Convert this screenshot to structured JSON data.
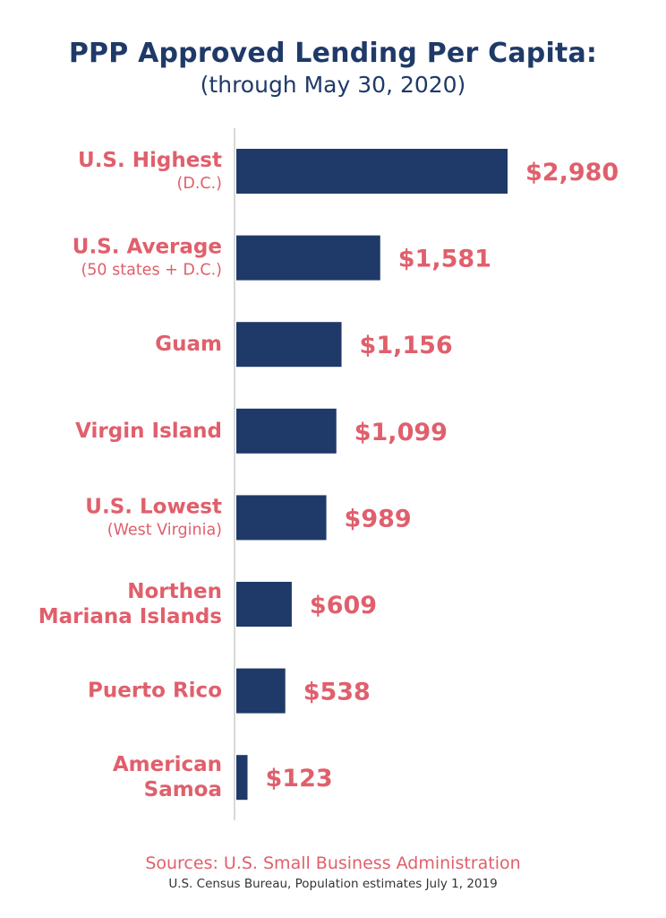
{
  "title": "PPP Approved Lending Per Capita:",
  "subtitle": "(through May 30, 2020)",
  "sources": {
    "line1": "Sources: U.S. Small Business Administration",
    "line2": "U.S. Census Bureau, Population estimates July 1, 2019"
  },
  "colors": {
    "bar": "#1f3a68",
    "label": "#e05f6c",
    "title": "#1f3a68",
    "axis": "#d8d8d8"
  },
  "chart_data": {
    "type": "bar",
    "orientation": "horizontal",
    "title": "PPP Approved Lending Per Capita:",
    "subtitle": "(through May 30, 2020)",
    "categories": [
      {
        "main": [
          "U.S. Highest"
        ],
        "sub": "(D.C.)"
      },
      {
        "main": [
          "U.S. Average"
        ],
        "sub": "(50 states + D.C.)"
      },
      {
        "main": [
          "Guam"
        ],
        "sub": ""
      },
      {
        "main": [
          "Virgin Island"
        ],
        "sub": ""
      },
      {
        "main": [
          "U.S. Lowest"
        ],
        "sub": "(West Virginia)"
      },
      {
        "main": [
          "Northen",
          "Mariana Islands"
        ],
        "sub": ""
      },
      {
        "main": [
          "Puerto Rico"
        ],
        "sub": ""
      },
      {
        "main": [
          "American",
          "Samoa"
        ],
        "sub": ""
      }
    ],
    "values": [
      2980,
      1581,
      1156,
      1099,
      989,
      609,
      538,
      123
    ],
    "value_labels": [
      "$2,980",
      "$1,581",
      "$1,156",
      "$1,099",
      "$989",
      "$609",
      "$538",
      "$123"
    ],
    "xlim": [
      0,
      2980
    ],
    "grid": false,
    "legend": "none"
  }
}
